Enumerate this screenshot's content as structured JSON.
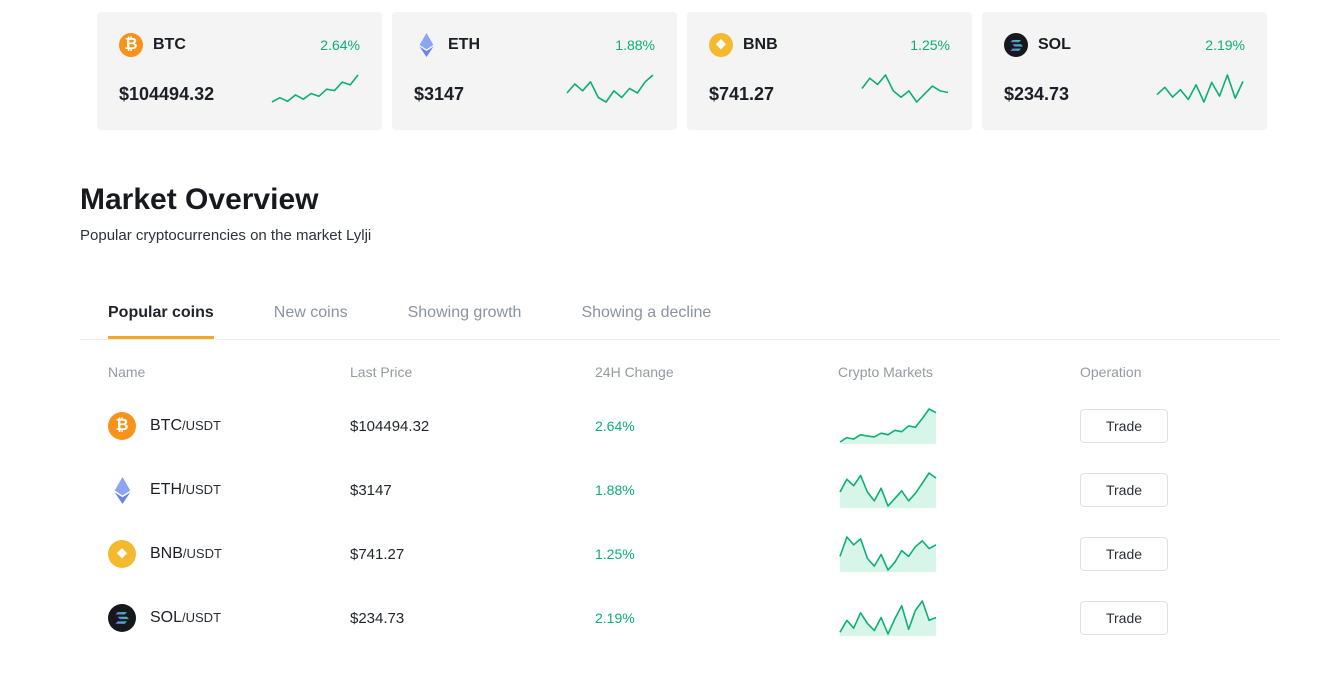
{
  "colors": {
    "green": "#0caf74",
    "green_fill": "rgba(14, 190, 125, 0.16)",
    "tab_accent": "#f5a623"
  },
  "ticker_cards": [
    {
      "symbol": "BTC",
      "price": "$104494.32",
      "change": "2.64%",
      "icon": "btc-icon",
      "spark": [
        34,
        40,
        35,
        44,
        38,
        46,
        42,
        52,
        50,
        62,
        58,
        72
      ]
    },
    {
      "symbol": "ETH",
      "price": "$3147",
      "change": "1.88%",
      "icon": "eth-icon",
      "spark": [
        50,
        58,
        52,
        60,
        46,
        42,
        52,
        46,
        54,
        50,
        60,
        66
      ]
    },
    {
      "symbol": "BNB",
      "price": "$741.27",
      "change": "1.25%",
      "icon": "bnb-icon",
      "spark": [
        55,
        68,
        60,
        72,
        52,
        44,
        52,
        38,
        48,
        58,
        52,
        50
      ]
    },
    {
      "symbol": "SOL",
      "price": "$234.73",
      "change": "2.19%",
      "icon": "sol-icon",
      "spark": [
        45,
        60,
        40,
        55,
        35,
        65,
        30,
        70,
        42,
        85,
        38,
        72
      ]
    }
  ],
  "market": {
    "title": "Market Overview",
    "subtitle": "Popular cryptocurrencies on the market Lylji",
    "tabs": [
      {
        "label": "Popular coins",
        "active": true
      },
      {
        "label": "New coins",
        "active": false
      },
      {
        "label": "Showing growth",
        "active": false
      },
      {
        "label": "Showing a decline",
        "active": false
      }
    ],
    "table": {
      "headers": [
        "Name",
        "Last Price",
        "24H Change",
        "Crypto Markets",
        "Operation"
      ],
      "rows": [
        {
          "base": "BTC",
          "quote": "/USDT",
          "price": "$104494.32",
          "change": "2.64%",
          "trade_label": "Trade",
          "icon": "btc-icon",
          "spark": [
            30,
            36,
            34,
            40,
            38,
            37,
            42,
            40,
            46,
            44,
            52,
            50,
            62,
            75,
            70
          ]
        },
        {
          "base": "ETH",
          "quote": "/USDT",
          "price": "$3147",
          "change": "1.88%",
          "trade_label": "Trade",
          "icon": "eth-icon",
          "spark": [
            55,
            65,
            60,
            68,
            55,
            48,
            58,
            44,
            50,
            56,
            48,
            54,
            62,
            70,
            66
          ]
        },
        {
          "base": "BNB",
          "quote": "/USDT",
          "price": "$741.27",
          "change": "1.25%",
          "trade_label": "Trade",
          "icon": "bnb-icon",
          "spark": [
            50,
            70,
            62,
            68,
            48,
            40,
            52,
            36,
            44,
            56,
            50,
            60,
            66,
            58,
            62
          ]
        },
        {
          "base": "SOL",
          "quote": "/USDT",
          "price": "$234.73",
          "change": "2.19%",
          "trade_label": "Trade",
          "icon": "sol-icon",
          "spark": [
            35,
            55,
            42,
            68,
            50,
            38,
            60,
            32,
            58,
            80,
            40,
            72,
            88,
            55,
            60
          ]
        }
      ]
    }
  }
}
